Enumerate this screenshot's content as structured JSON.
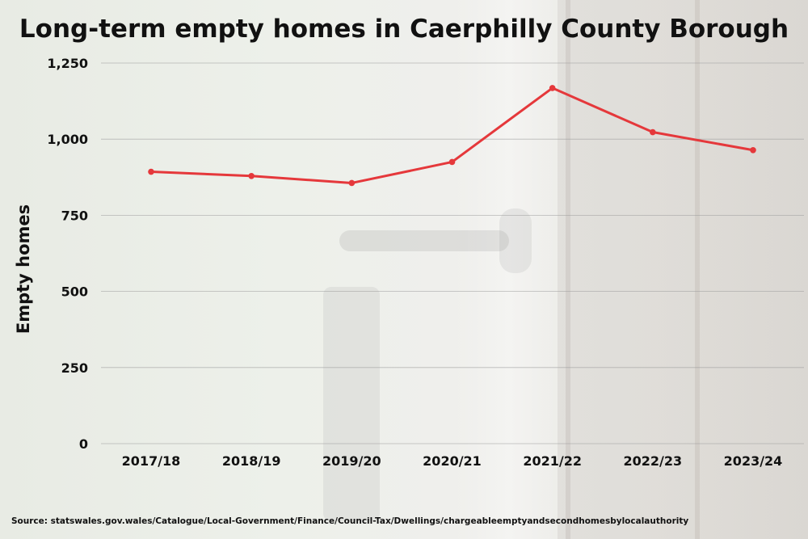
{
  "chart_data": {
    "type": "line",
    "title": "Long-term empty homes in Caerphilly County Borough",
    "xlabel": "",
    "ylabel": "Empty homes",
    "categories": [
      "2017/18",
      "2018/19",
      "2019/20",
      "2020/21",
      "2021/22",
      "2022/23",
      "2023/24"
    ],
    "series": [
      {
        "values": [
          893,
          879,
          856,
          925,
          1168,
          1023,
          964
        ],
        "color": "#e5383b"
      }
    ],
    "yticks": [
      "0",
      "250",
      "500",
      "750",
      "1,000",
      "1,250"
    ],
    "ytick_values": [
      0,
      250,
      500,
      750,
      1000,
      1250
    ],
    "ylim": [
      0,
      1250
    ],
    "grid": true,
    "legend": "none"
  },
  "source": "Source: statswales.gov.wales/Catalogue/Local-Government/Finance/Council-Tax/Dwellings/chargeableemptyandsecondhomesbylocalauthority"
}
